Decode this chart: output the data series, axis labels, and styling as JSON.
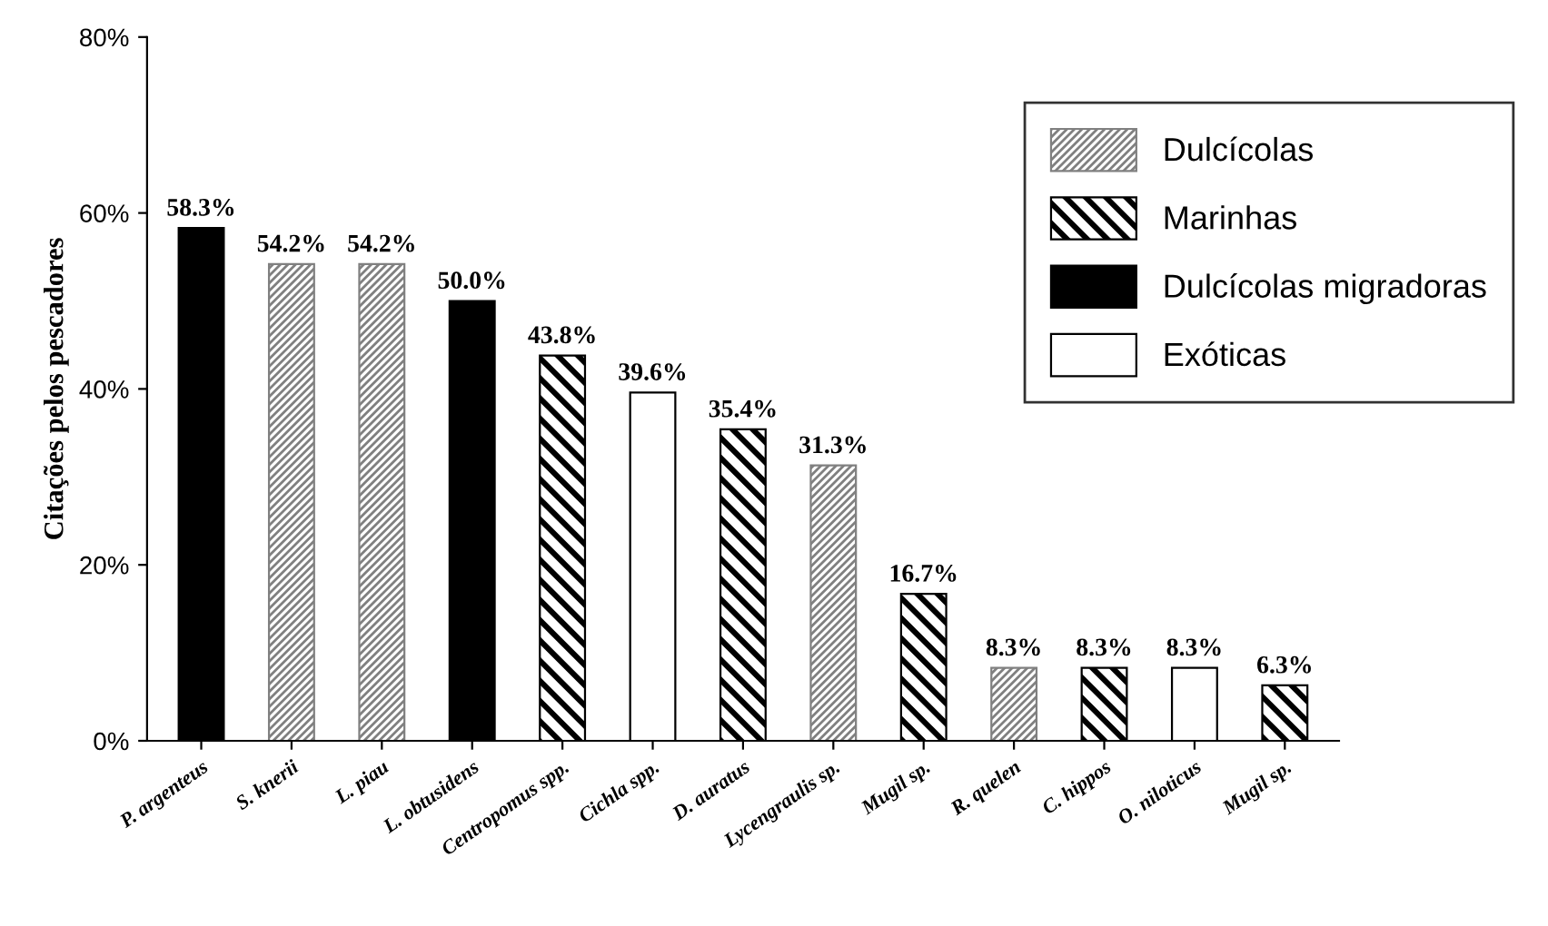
{
  "chart_data": {
    "type": "bar",
    "ylabel": "Citações pelos pescadores",
    "categories": [
      "P. argenteus",
      "S. knerii",
      "L. piau",
      "L. obtusidens",
      "Centropomus spp.",
      "Cichla spp.",
      "D. auratus",
      "Lycengraulis sp.",
      "Mugil sp.",
      "R. quelen",
      "C. hippos",
      "O. niloticus",
      "Mugil sp."
    ],
    "series": [
      {
        "name": "Dulcícolas",
        "color": "#808080",
        "values": [
          null,
          54.2,
          54.2,
          null,
          null,
          null,
          null,
          31.3,
          null,
          8.3,
          null,
          null,
          null
        ],
        "value_labels": [
          null,
          "54.2%",
          "54.2%",
          null,
          null,
          null,
          null,
          "31.3%",
          null,
          "8.3%",
          null,
          null,
          null
        ]
      },
      {
        "name": "Marinhas",
        "color": "#000000",
        "values": [
          null,
          null,
          null,
          null,
          43.8,
          null,
          35.4,
          null,
          16.7,
          null,
          8.3,
          null,
          6.3
        ],
        "value_labels": [
          null,
          null,
          null,
          null,
          "43.8%",
          null,
          "35.4%",
          null,
          "16.7%",
          null,
          "8.3%",
          null,
          "6.3%"
        ]
      },
      {
        "name": "Dulcícolas migradoras",
        "color": "#000000",
        "values": [
          58.3,
          null,
          null,
          50.0,
          null,
          null,
          null,
          null,
          null,
          null,
          null,
          null,
          null
        ],
        "value_labels": [
          "58.3%",
          null,
          null,
          "50.0%",
          null,
          null,
          null,
          null,
          null,
          null,
          null,
          null,
          null
        ]
      },
      {
        "name": "Exóticas",
        "color": "#ffffff",
        "values": [
          null,
          null,
          null,
          null,
          null,
          39.6,
          null,
          null,
          null,
          null,
          null,
          8.3,
          null
        ],
        "value_labels": [
          null,
          null,
          null,
          null,
          null,
          "39.6%",
          null,
          null,
          null,
          null,
          null,
          "8.3%",
          null
        ]
      }
    ],
    "ylim": [
      0,
      80
    ],
    "yticks": [
      {
        "value": 0,
        "label": "0%"
      },
      {
        "value": 20,
        "label": "20%"
      },
      {
        "value": 40,
        "label": "40%"
      },
      {
        "value": 60,
        "label": "60%"
      },
      {
        "value": 80,
        "label": "80%"
      }
    ],
    "legend": "top right",
    "grid": false
  }
}
